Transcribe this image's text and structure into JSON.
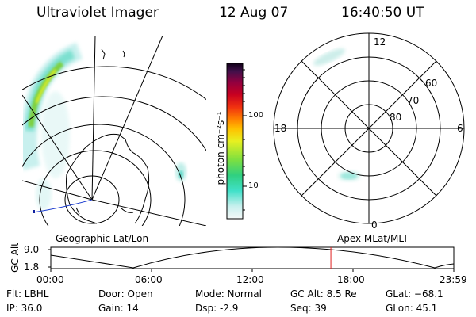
{
  "header": {
    "instrument": "Ultraviolet Imager",
    "date": "12 Aug 07",
    "time": "16:40:50 UT"
  },
  "colorbar": {
    "unit_label": "photon cm⁻²s⁻¹",
    "ticks": [
      "100",
      "10"
    ]
  },
  "polar_plot": {
    "clock_labels": {
      "top": "12",
      "right": "6",
      "bottom": "0",
      "left": "18"
    },
    "lat_labels": [
      "60",
      "70",
      "80"
    ]
  },
  "orbit_panel": {
    "left_label": "Geographic Lat/Lon",
    "right_label": "Apex MLat/MLT",
    "axis_label": "GC Alt",
    "y_ticks": [
      "9.0",
      "1.8"
    ],
    "x_ticks": [
      "00:00",
      "06:00",
      "12:00",
      "18:00",
      "23:59"
    ],
    "current_time_fraction": 0.695
  },
  "info": {
    "flt": "Flt: LBHL",
    "ip": "IP: 36.0",
    "door": "Door: Open",
    "gain": "Gain: 14",
    "mode": "Mode: Normal",
    "dsp": "Dsp:    -2.9",
    "gcalt": "GC Alt: 8.5 Re",
    "seq": "Seq: 39",
    "glat": "GLat: −68.1",
    "glon": "GLon:  45.1"
  }
}
